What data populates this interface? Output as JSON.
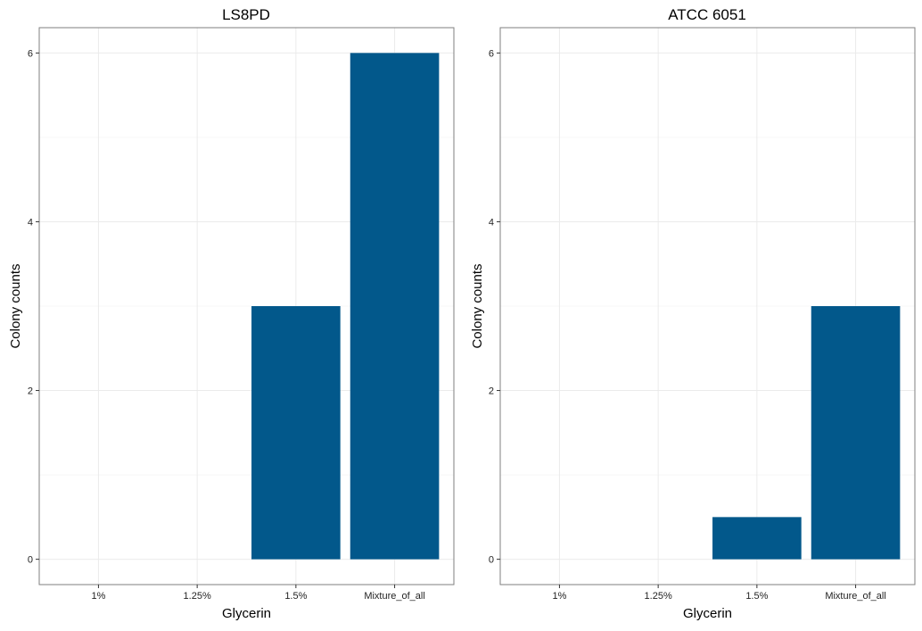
{
  "chart_data": [
    {
      "type": "bar",
      "title": "LS8PD",
      "xlabel": "Glycerin",
      "ylabel": "Colony counts",
      "categories": [
        "1%",
        "1.25%",
        "1.5%",
        "Mixture_of_all"
      ],
      "values": [
        0,
        0,
        3,
        6
      ],
      "ylim": [
        -0.3,
        6.3
      ],
      "yticks": [
        0,
        2,
        4,
        6
      ],
      "grid": true,
      "bar_color": "#02588b"
    },
    {
      "type": "bar",
      "title": "ATCC 6051",
      "xlabel": "Glycerin",
      "ylabel": "Colony counts",
      "categories": [
        "1%",
        "1.25%",
        "1.5%",
        "Mixture_of_all"
      ],
      "values": [
        0,
        0,
        0.5,
        3
      ],
      "ylim": [
        -0.3,
        6.3
      ],
      "yticks": [
        0,
        2,
        4,
        6
      ],
      "grid": true,
      "bar_color": "#02588b"
    }
  ]
}
